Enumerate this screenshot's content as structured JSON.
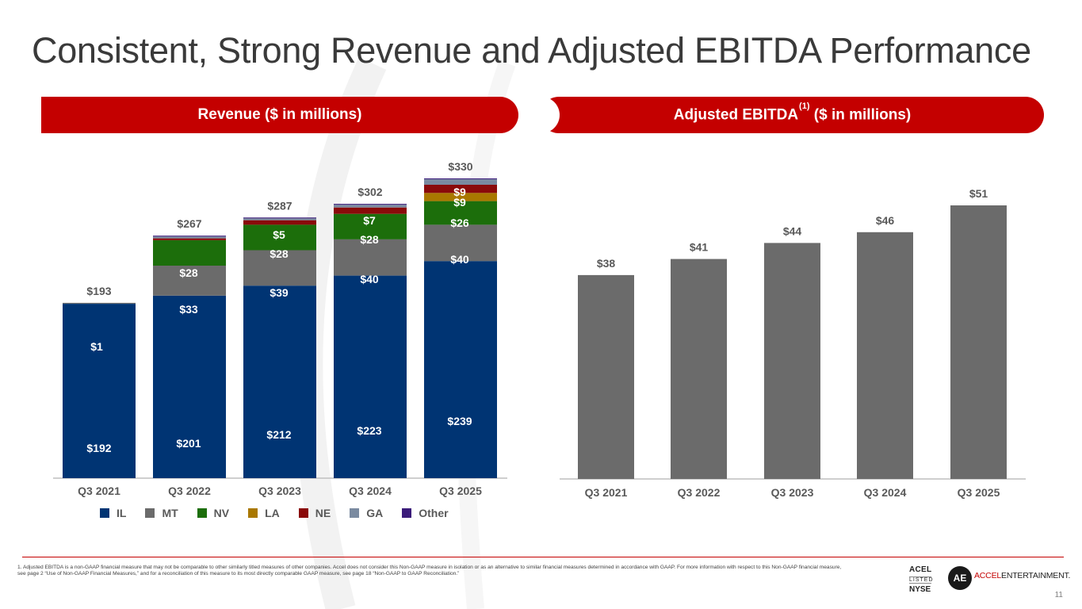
{
  "title": "Consistent, Strong Revenue and Adjusted EBITDA Performance",
  "left_banner": "Revenue ($ in millions)",
  "right_banner": {
    "pre": "Adjusted EBITDA",
    "sup": "(1)",
    "post": " ($ in millions)"
  },
  "colors": {
    "IL": "#003473",
    "MT": "#6b6b6b",
    "NV": "#1c6e0b",
    "LA": "#a97800",
    "NE": "#8a0a0a",
    "GA": "#7a8aa0",
    "Other": "#3b1c7a",
    "ebitda": "#6b6b6b",
    "brand_red": "#c40000"
  },
  "chart_data": [
    {
      "type": "bar",
      "stacked": true,
      "title": "Revenue ($ in millions)",
      "categories": [
        "Q3 2021",
        "Q3 2022",
        "Q3 2023",
        "Q3 2024",
        "Q3 2025"
      ],
      "totals": [
        193,
        267,
        287,
        302,
        330
      ],
      "total_labels": [
        "$193",
        "$267",
        "$287",
        "$302",
        "$330"
      ],
      "series": [
        {
          "name": "IL",
          "values": [
            192,
            201,
            212,
            223,
            239
          ],
          "labels": [
            "$192",
            "$201",
            "$212",
            "$223",
            "$239"
          ]
        },
        {
          "name": "MT",
          "values": [
            1,
            33,
            39,
            40,
            40
          ],
          "labels": [
            "$1",
            "$33",
            "$39",
            "$40",
            "$40"
          ]
        },
        {
          "name": "NV",
          "values": [
            0,
            28,
            28,
            28,
            26
          ],
          "labels": [
            "",
            "$28",
            "$28",
            "$28",
            "$26"
          ]
        },
        {
          "name": "LA",
          "values": [
            0,
            0,
            0,
            0,
            9
          ],
          "labels": [
            "",
            "",
            "",
            "",
            "$9"
          ]
        },
        {
          "name": "NE",
          "values": [
            0,
            2,
            5,
            7,
            9
          ],
          "labels": [
            "",
            "",
            "$5",
            "$7",
            "$9"
          ]
        },
        {
          "name": "GA",
          "values": [
            0,
            2,
            2,
            3,
            6
          ],
          "labels": [
            "",
            "",
            "",
            "",
            ""
          ]
        },
        {
          "name": "Other",
          "values": [
            0,
            1,
            1,
            1,
            1
          ],
          "labels": [
            "",
            "",
            "",
            "",
            ""
          ]
        }
      ],
      "ylim": [
        0,
        340
      ],
      "legend": [
        "IL",
        "MT",
        "NV",
        "LA",
        "NE",
        "GA",
        "Other"
      ]
    },
    {
      "type": "bar",
      "title": "Adjusted EBITDA(1) ($ in millions)",
      "categories": [
        "Q3 2021",
        "Q3 2022",
        "Q3 2023",
        "Q3 2024",
        "Q3 2025"
      ],
      "values": [
        38,
        41,
        44,
        46,
        51
      ],
      "labels": [
        "$38",
        "$41",
        "$44",
        "$46",
        "$51"
      ],
      "ylim": [
        0,
        55
      ]
    }
  ],
  "footnote": "1.  Adjusted EBITDA is a non-GAAP financial measure that may not be comparable to other similarly titled measures of other companies. Accel does not consider this Non-GAAP measure in isolation or as an alternative to similar financial measures determined in accordance with GAAP.  For more information with respect to this Non-GAAP financial measure, see page 2 “Use of Non-GAAP Financial Measures,” and for a reconciliation of this measure to its most directly comparable GAAP measure, see page 18 “Non-GAAP to GAAP Reconciliation.”",
  "listed": {
    "ticker": "ACEL",
    "word": "LISTED",
    "exchange": "NYSE"
  },
  "logo": {
    "mark": "AE",
    "accent": "ACCEL",
    "rest": "ENTERTAINMENT."
  },
  "page_number": "11"
}
